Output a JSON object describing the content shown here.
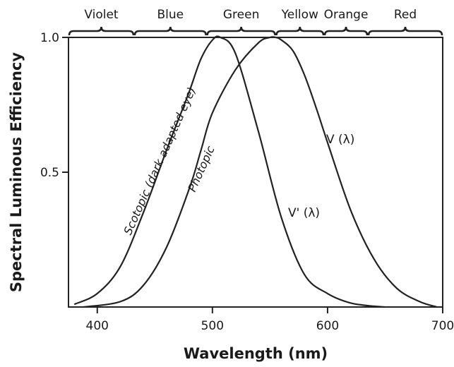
{
  "chart_data": {
    "type": "line",
    "title": "",
    "xlabel": "Wavelength (nm)",
    "ylabel": "Spectral Luminous Efficiency",
    "xlim": [
      375,
      700
    ],
    "ylim": [
      0,
      1.0
    ],
    "x_ticks": [
      {
        "value": 400,
        "label": "400"
      },
      {
        "value": 500,
        "label": "500"
      },
      {
        "value": 600,
        "label": "600"
      },
      {
        "value": 700,
        "label": "700"
      }
    ],
    "y_ticks": [
      {
        "value": 0.5,
        "label": "0.5"
      },
      {
        "value": 1.0,
        "label": "1.0"
      }
    ],
    "color_bands": [
      {
        "label": "Violet",
        "start": 375,
        "end": 432
      },
      {
        "label": "Blue",
        "start": 432,
        "end": 495
      },
      {
        "label": "Green",
        "start": 495,
        "end": 555
      },
      {
        "label": "Yellow",
        "start": 555,
        "end": 597
      },
      {
        "label": "Orange",
        "start": 597,
        "end": 635
      },
      {
        "label": "Red",
        "start": 635,
        "end": 700
      }
    ],
    "series": [
      {
        "key": "scotopic",
        "x": [
          380,
          400,
          420,
          440,
          460,
          470,
          480,
          490,
          500,
          507,
          520,
          540,
          560,
          580,
          600,
          620,
          640,
          650
        ],
        "y": [
          0.01,
          0.05,
          0.15,
          0.35,
          0.58,
          0.69,
          0.8,
          0.92,
          0.99,
          1.0,
          0.94,
          0.65,
          0.33,
          0.12,
          0.05,
          0.015,
          0.003,
          0.0
        ]
      },
      {
        "key": "photopic",
        "x": [
          388,
          420,
          440,
          460,
          480,
          490,
          500,
          520,
          540,
          550,
          555,
          560,
          570,
          580,
          590,
          600,
          620,
          640,
          660,
          680,
          695
        ],
        "y": [
          0.0,
          0.02,
          0.08,
          0.22,
          0.44,
          0.58,
          0.72,
          0.88,
          0.98,
          1.0,
          1.0,
          0.99,
          0.95,
          0.86,
          0.74,
          0.61,
          0.36,
          0.18,
          0.07,
          0.02,
          0.0
        ]
      }
    ],
    "annotations": {
      "scotopic_label": "Scotopic (dark adapted eye)",
      "photopic_label": "Photopic",
      "v_lambda": "V (λ)",
      "v_prime_lambda": "V' (λ)"
    },
    "grid": false,
    "legend": "none"
  }
}
